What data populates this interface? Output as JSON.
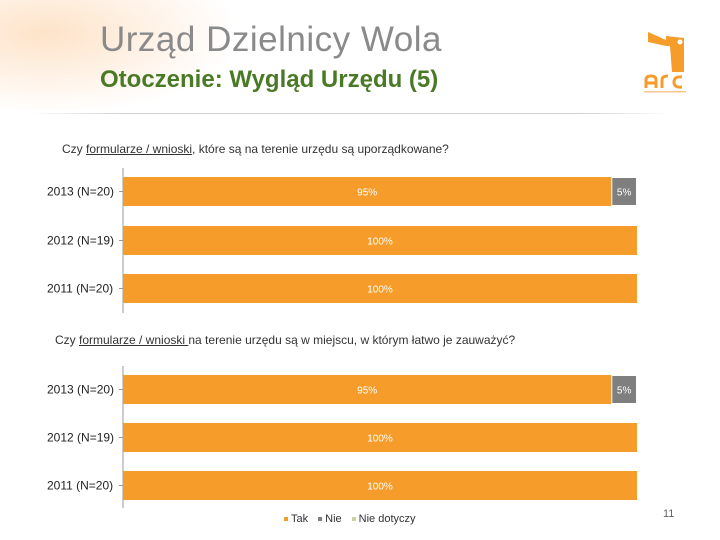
{
  "header": {
    "title": "Urząd Dzielnicy Wola",
    "subtitle": "Otoczenie: Wygląd Urzędu (5)",
    "logo_icon": "arc-lighthouse-logo"
  },
  "colors": {
    "tak": "#f59c2b",
    "nie": "#7f7f7f",
    "nie_dotyczy": "#c8d49c",
    "subtitle": "#4a7a26",
    "title": "#8a8a8a"
  },
  "legend": {
    "items": [
      "Tak",
      "Nie",
      "Nie dotyczy"
    ]
  },
  "page_number": "11",
  "chart_data": [
    {
      "type": "bar",
      "orientation": "horizontal",
      "stacked": true,
      "title_parts": {
        "pre": "Czy ",
        "underlined": "formularze / wnioski",
        "post": ", które są na terenie urzędu są uporządkowane?"
      },
      "categories": [
        "2013 (N=20)",
        "2012 (N=19)",
        "2011 (N=20)"
      ],
      "series": [
        {
          "name": "Tak",
          "values": [
            95,
            100,
            100
          ],
          "labels": [
            "95%",
            "100%",
            "100%"
          ]
        },
        {
          "name": "Nie",
          "values": [
            5,
            0,
            0
          ],
          "labels": [
            "5%",
            "",
            ""
          ]
        },
        {
          "name": "Nie dotyczy",
          "values": [
            0,
            0,
            0
          ],
          "labels": [
            "",
            "",
            ""
          ]
        }
      ],
      "xlim": [
        0,
        100
      ]
    },
    {
      "type": "bar",
      "orientation": "horizontal",
      "stacked": true,
      "title_parts": {
        "pre": "Czy ",
        "underlined": "formularze / wnioski ",
        "post": "na terenie urzędu są w miejscu, w którym łatwo je zauważyć?"
      },
      "categories": [
        "2013 (N=20)",
        "2012 (N=19)",
        "2011 (N=20)"
      ],
      "series": [
        {
          "name": "Tak",
          "values": [
            95,
            100,
            100
          ],
          "labels": [
            "95%",
            "100%",
            "100%"
          ]
        },
        {
          "name": "Nie",
          "values": [
            5,
            0,
            0
          ],
          "labels": [
            "5%",
            "",
            ""
          ]
        },
        {
          "name": "Nie dotyczy",
          "values": [
            0,
            0,
            0
          ],
          "labels": [
            "",
            "",
            ""
          ]
        }
      ],
      "xlim": [
        0,
        100
      ]
    }
  ]
}
